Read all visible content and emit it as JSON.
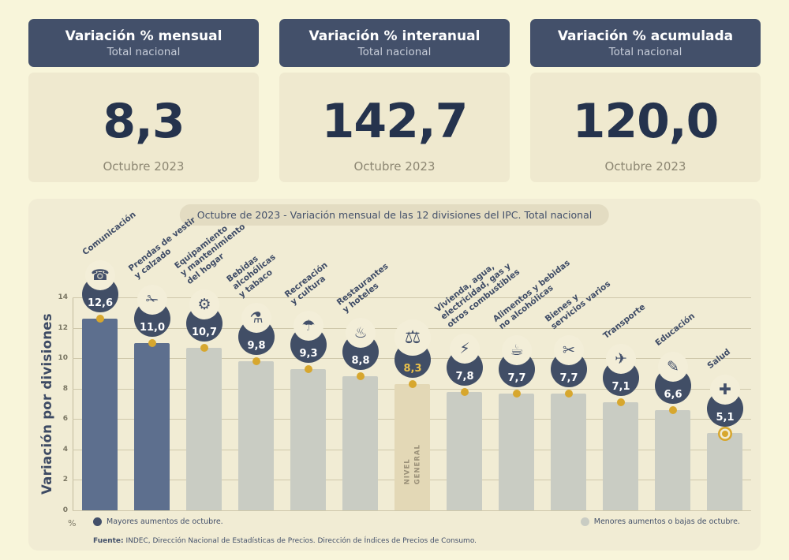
{
  "cards": [
    {
      "title": "Variación % mensual",
      "subtitle": "Total nacional",
      "value": "8,3",
      "period": "Octubre 2023"
    },
    {
      "title": "Variación % interanual",
      "subtitle": "Total nacional",
      "value": "142,7",
      "period": "Octubre 2023"
    },
    {
      "title": "Variación % acumulada",
      "subtitle": "Total nacional",
      "value": "120,0",
      "period": "Octubre 2023"
    }
  ],
  "chart": {
    "title": "Octubre de 2023 - Variación mensual de las 12 divisiones del IPC. Total nacional",
    "ylabel": "Variación por divisiones",
    "percent_label": "%",
    "legend_major": "Mayores aumentos de octubre.",
    "legend_minor": "Menores aumentos o bajas de octubre.",
    "source_prefix": "Fuente:",
    "source_text": " INDEC, Dirección Nacional de Estadísticas de Precios. Dirección de Índices de Precios de Consumo."
  },
  "chart_data": {
    "type": "bar",
    "title": "Octubre de 2023 - Variación mensual de las 12 divisiones del IPC. Total nacional",
    "ylabel": "Variación por divisiones",
    "ylim": [
      0,
      14
    ],
    "ytick_step": 2,
    "grid": true,
    "legend_position": "bottom",
    "colors": {
      "major": "#5d6f8e",
      "minor": "#c9ccc3",
      "general": "#e3d8b6",
      "badge": "#414e66",
      "dot": "#d7a72e"
    },
    "bars": [
      {
        "category": "Comunicación",
        "label": "Comunicación",
        "value": 12.6,
        "value_label": "12,6",
        "group": "major",
        "icon": "smartphone",
        "glyph": "☎"
      },
      {
        "category": "Prendas de vestir y calzado",
        "label": "Prendas de vestir\ny calzado",
        "value": 11.0,
        "value_label": "11,0",
        "group": "major",
        "icon": "clothing",
        "glyph": "✁"
      },
      {
        "category": "Equipamiento y mantenimiento del hogar",
        "label": "Equipamiento\ny mantenimiento\ndel hogar",
        "value": 10.7,
        "value_label": "10,7",
        "group": "minor",
        "icon": "washing-machine",
        "glyph": "⚙"
      },
      {
        "category": "Bebidas alcohólicas y tabaco",
        "label": "Bebidas\nalcohólicas\ny tabaco",
        "value": 9.8,
        "value_label": "9,8",
        "group": "minor",
        "icon": "bottles",
        "glyph": "⚗"
      },
      {
        "category": "Recreación y cultura",
        "label": "Recreación\ny cultura",
        "value": 9.3,
        "value_label": "9,3",
        "group": "minor",
        "icon": "beach-umbrella",
        "glyph": "☂"
      },
      {
        "category": "Restaurantes y hoteles",
        "label": "Restaurantes\ny hoteles",
        "value": 8.8,
        "value_label": "8,8",
        "group": "minor",
        "icon": "dining",
        "glyph": "♨"
      },
      {
        "category": "Nivel general",
        "label": "",
        "inner_label": "NIVEL\nGENERAL",
        "value": 8.3,
        "value_label": "8,3",
        "group": "general",
        "icon": "shopping-basket",
        "glyph": "⚖"
      },
      {
        "category": "Vivienda, agua, electricidad, gas y otros combustibles",
        "label": "Vivienda, agua,\nelectricidad, gas y\notros combustibles",
        "value": 7.8,
        "value_label": "7,8",
        "group": "minor",
        "icon": "utilities-bulb",
        "glyph": "⚡"
      },
      {
        "category": "Alimentos y bebidas no alcohólicas",
        "label": "Alimentos y bebidas\nno alcohólicas",
        "value": 7.7,
        "value_label": "7,7",
        "group": "minor",
        "icon": "food",
        "glyph": "☕"
      },
      {
        "category": "Bienes y servicios varios",
        "label": "Bienes y\nservicios varios",
        "value": 7.7,
        "value_label": "7,7",
        "group": "minor",
        "icon": "grooming-scissors",
        "glyph": "✂"
      },
      {
        "category": "Transporte",
        "label": "Transporte",
        "value": 7.1,
        "value_label": "7,1",
        "group": "minor",
        "icon": "bus",
        "glyph": "✈"
      },
      {
        "category": "Educación",
        "label": "Educación",
        "value": 6.6,
        "value_label": "6,6",
        "group": "minor",
        "icon": "education-pencil",
        "glyph": "✎"
      },
      {
        "category": "Salud",
        "label": "Salud",
        "value": 5.1,
        "value_label": "5,1",
        "group": "minor",
        "icon": "health-cross",
        "glyph": "✚",
        "dot": "ring"
      }
    ]
  }
}
